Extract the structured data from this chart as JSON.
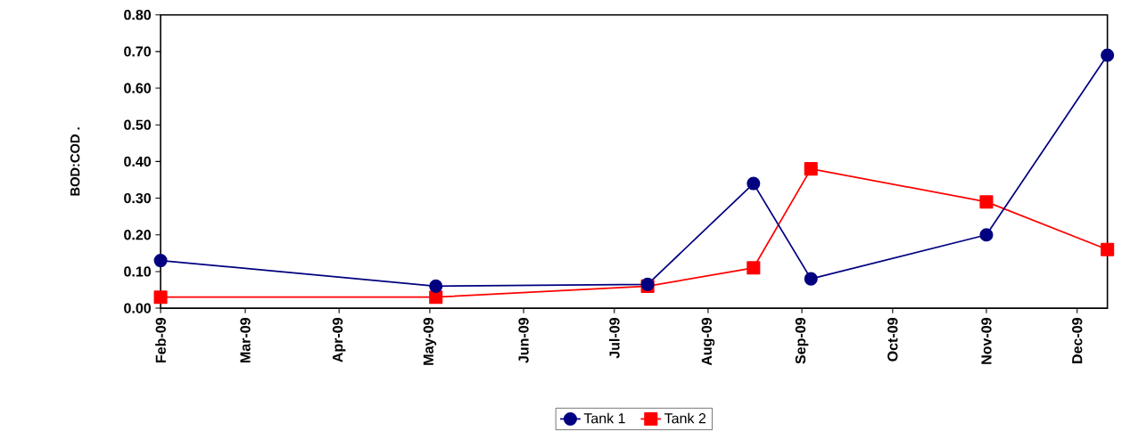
{
  "chart_data": {
    "type": "line",
    "ylabel": "BOD:COD .",
    "x": [
      "2009-02-01",
      "2009-05-03",
      "2009-07-12",
      "2009-08-16",
      "2009-09-04",
      "2009-11-01",
      "2009-12-11"
    ],
    "series": [
      {
        "name": "Tank 1",
        "color": "#000080",
        "marker": "circle",
        "values": [
          0.13,
          0.06,
          0.065,
          0.34,
          0.08,
          0.2,
          0.69
        ]
      },
      {
        "name": "Tank 2",
        "color": "#ff0000",
        "marker": "square",
        "values": [
          0.03,
          0.03,
          0.06,
          0.11,
          0.38,
          0.29,
          0.16
        ]
      }
    ],
    "xlim": [
      "2009-02-01",
      "2009-12-11"
    ],
    "ylim": [
      0,
      0.8
    ],
    "xticks": [
      {
        "value": "2009-02-01",
        "label": "Feb-09"
      },
      {
        "value": "2009-03-01",
        "label": "Mar-09"
      },
      {
        "value": "2009-04-01",
        "label": "Apr-09"
      },
      {
        "value": "2009-05-01",
        "label": "May-09"
      },
      {
        "value": "2009-06-01",
        "label": "Jun-09"
      },
      {
        "value": "2009-07-01",
        "label": "Jul-09"
      },
      {
        "value": "2009-08-01",
        "label": "Aug-09"
      },
      {
        "value": "2009-09-01",
        "label": "Sep-09"
      },
      {
        "value": "2009-10-01",
        "label": "Oct-09"
      },
      {
        "value": "2009-11-01",
        "label": "Nov-09"
      },
      {
        "value": "2009-12-01",
        "label": "Dec-09"
      }
    ],
    "yticks": [
      {
        "value": 0,
        "label": "0.00"
      },
      {
        "value": 0.1,
        "label": "0.10"
      },
      {
        "value": 0.2,
        "label": "0.20"
      },
      {
        "value": 0.3,
        "label": "0.30"
      },
      {
        "value": 0.4,
        "label": "0.40"
      },
      {
        "value": 0.5,
        "label": "0.50"
      },
      {
        "value": 0.6,
        "label": "0.60"
      },
      {
        "value": 0.7,
        "label": "0.70"
      },
      {
        "value": 0.8,
        "label": "0.80"
      }
    ],
    "legend": "bottom"
  }
}
